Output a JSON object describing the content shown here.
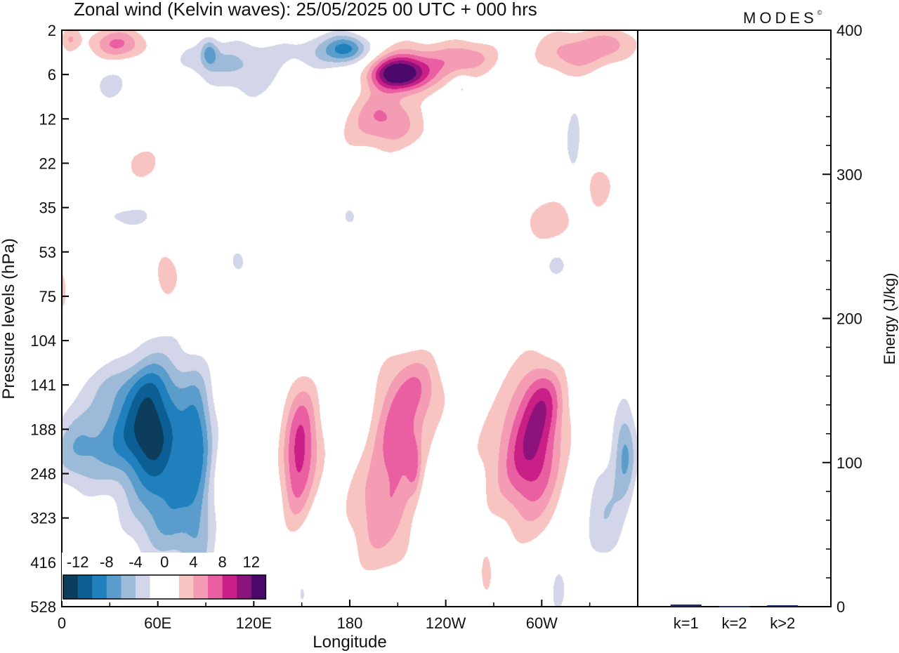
{
  "title": "Zonal wind (Kelvin waves):  25/05/2025  00 UTC  + 000 hrs",
  "brand": "MODES",
  "brand_mark": "©",
  "chart_data": [
    {
      "type": "heatmap",
      "title": "Zonal wind (Kelvin waves):  25/05/2025  00 UTC  + 000 hrs",
      "xlabel": "Longitude",
      "ylabel": "Pressure levels (hPa)",
      "x_ticks": [
        "0",
        "60E",
        "120E",
        "180",
        "120W",
        "60W"
      ],
      "y_ticks": [
        "2",
        "6",
        "12",
        "22",
        "35",
        "53",
        "75",
        "104",
        "141",
        "188",
        "248",
        "323",
        "416",
        "528"
      ],
      "colorbar": {
        "labels": [
          "-12",
          "-8",
          "-4",
          "0",
          "4",
          "8",
          "12"
        ],
        "colors": [
          "#0d3d5c",
          "#0b5f94",
          "#1f80bd",
          "#5a9ccb",
          "#9dbbd9",
          "#d3d6e8",
          "#ffffff",
          "#ffffff",
          "#f8c4c1",
          "#f59cb5",
          "#ea5fa1",
          "#c91f86",
          "#8c137b",
          "#4b0a6b"
        ]
      },
      "blobs": [
        {
          "lon": 10,
          "lev": 9.5,
          "rl": 18,
          "rp": 0.9,
          "v": -5.5
        },
        {
          "lon": 45,
          "lev": 9.1,
          "rl": 22,
          "rp": 1.1,
          "v": -9
        },
        {
          "lon": 55,
          "lev": 8.6,
          "rl": 12,
          "rp": 1.5,
          "v": -4
        },
        {
          "lon": 70,
          "lev": 9.5,
          "rl": 18,
          "rp": 2.0,
          "v": -6
        },
        {
          "lon": 85,
          "lev": 9.2,
          "rl": 9,
          "rp": 1.4,
          "v": -6
        },
        {
          "lon": 60,
          "lev": 11.0,
          "rl": 25,
          "rp": 1.1,
          "v": -3.5
        },
        {
          "lon": 85,
          "lev": 11.6,
          "rl": 10,
          "rp": 1.5,
          "v": -3
        },
        {
          "lon": 40,
          "lev": 8.0,
          "rl": 30,
          "rp": 0.6,
          "v": -3
        },
        {
          "lon": 150,
          "lev": 9.2,
          "rl": 11,
          "rp": 1.3,
          "v": 7.5
        },
        {
          "lon": 145,
          "lev": 10.3,
          "rl": 9,
          "rp": 1.0,
          "v": 4
        },
        {
          "lon": 210,
          "lev": 9.1,
          "rl": 16,
          "rp": 1.4,
          "v": 7
        },
        {
          "lon": 198,
          "lev": 11.0,
          "rl": 20,
          "rp": 1.4,
          "v": 4.5
        },
        {
          "lon": 225,
          "lev": 8.0,
          "rl": 15,
          "rp": 0.8,
          "v": 4
        },
        {
          "lon": 295,
          "lev": 9.4,
          "rl": 16,
          "rp": 1.4,
          "v": 7
        },
        {
          "lon": 285,
          "lev": 9.6,
          "rl": 25,
          "rp": 1.7,
          "v": 4
        },
        {
          "lon": 302,
          "lev": 8.3,
          "rl": 12,
          "rp": 0.8,
          "v": 4.5
        },
        {
          "lon": 352,
          "lev": 9.5,
          "rl": 7,
          "rp": 1.0,
          "v": -6
        },
        {
          "lon": 340,
          "lev": 10.8,
          "rl": 14,
          "rp": 1.4,
          "v": -3.5
        },
        {
          "lon": 310,
          "lev": 12.5,
          "rl": 6,
          "rp": 0.7,
          "v": -2.8
        },
        {
          "lon": 265,
          "lev": 12.2,
          "rl": 4,
          "rp": 0.5,
          "v": 3.5
        },
        {
          "lon": 220,
          "lev": 9.8,
          "rl": 4,
          "rp": 0.6,
          "v": 3.3
        },
        {
          "lon": 210,
          "lev": 1.0,
          "rl": 16,
          "rp": 0.35,
          "v": 11
        },
        {
          "lon": 218,
          "lev": 0.8,
          "rl": 30,
          "rp": 0.5,
          "v": 6
        },
        {
          "lon": 200,
          "lev": 1.8,
          "rl": 18,
          "rp": 0.5,
          "v": 5
        },
        {
          "lon": 205,
          "lev": 2.3,
          "rl": 30,
          "rp": 0.5,
          "v": 3.5
        },
        {
          "lon": 255,
          "lev": 0.6,
          "rl": 18,
          "rp": 0.4,
          "v": 4.5
        },
        {
          "lon": 320,
          "lev": 0.5,
          "rl": 22,
          "rp": 0.5,
          "v": 5
        },
        {
          "lon": 345,
          "lev": 0.3,
          "rl": 15,
          "rp": 0.4,
          "v": 4
        },
        {
          "lon": 35,
          "lev": 0.3,
          "rl": 18,
          "rp": 0.35,
          "v": 6
        },
        {
          "lon": 5,
          "lev": 0.2,
          "rl": 6,
          "rp": 0.3,
          "v": 3.5
        },
        {
          "lon": 170,
          "lev": 0.5,
          "rl": 30,
          "rp": 0.4,
          "v": -4
        },
        {
          "lon": 178,
          "lev": 0.4,
          "rl": 12,
          "rp": 0.3,
          "v": -6
        },
        {
          "lon": 95,
          "lev": 0.7,
          "rl": 25,
          "rp": 0.5,
          "v": -3
        },
        {
          "lon": 120,
          "lev": 0.9,
          "rl": 20,
          "rp": 0.7,
          "v": -3
        },
        {
          "lon": 92,
          "lev": 0.5,
          "rl": 5,
          "rp": 0.3,
          "v": -5
        },
        {
          "lon": 30,
          "lev": 1.2,
          "rl": 12,
          "rp": 0.4,
          "v": -2.8
        },
        {
          "lon": 320,
          "lev": 2.5,
          "rl": 5,
          "rp": 0.9,
          "v": -3
        },
        {
          "lon": 305,
          "lev": 4.3,
          "rl": 18,
          "rp": 0.5,
          "v": 3.3
        },
        {
          "lon": 335,
          "lev": 3.5,
          "rl": 10,
          "rp": 0.6,
          "v": 3.3
        },
        {
          "lon": 50,
          "lev": 3.0,
          "rl": 12,
          "rp": 0.4,
          "v": 3.3
        },
        {
          "lon": 40,
          "lev": 4.2,
          "rl": 18,
          "rp": 0.3,
          "v": -3
        },
        {
          "lon": 65,
          "lev": 5.5,
          "rl": 8,
          "rp": 0.6,
          "v": 3.3
        },
        {
          "lon": 110,
          "lev": 5.2,
          "rl": 5,
          "rp": 0.3,
          "v": -3
        },
        {
          "lon": 180,
          "lev": 4.2,
          "rl": 4,
          "rp": 0.2,
          "v": -3
        },
        {
          "lon": 310,
          "lev": 5.3,
          "rl": 7,
          "rp": 0.3,
          "v": -3
        },
        {
          "lon": 150,
          "lev": 12.7,
          "rl": 4,
          "rp": 0.4,
          "v": -2.8
        },
        {
          "lon": 0,
          "lev": 5.8,
          "rl": 3,
          "rp": 0.5,
          "v": 3.3
        },
        {
          "lon": 250,
          "lev": 1.3,
          "rl": 6,
          "rp": 0.25,
          "v": -3
        }
      ]
    },
    {
      "type": "bar",
      "ylabel": "Energy (J/kg)",
      "categories": [
        "k=1",
        "k=2",
        "k>2"
      ],
      "values": [
        1,
        0,
        0.5
      ],
      "ylim": [
        0,
        400
      ],
      "y_ticks": [
        "0",
        "100",
        "200",
        "300",
        "400"
      ],
      "bar_color": "#1b2a6b"
    }
  ]
}
